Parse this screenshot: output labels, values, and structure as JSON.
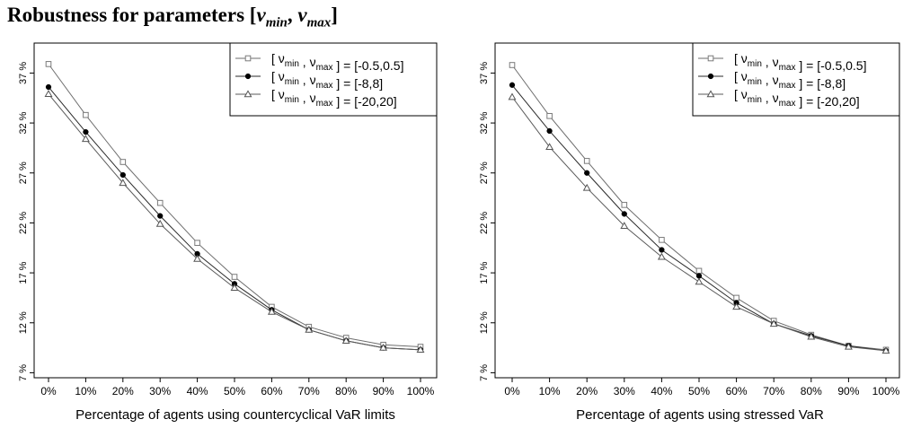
{
  "page": {
    "title_prefix": "Robustness for parameters [",
    "title_v1": "v",
    "title_sub1": "min",
    "title_sep": ", ",
    "title_v2": "v",
    "title_sub2": "max",
    "title_suffix": "]"
  },
  "chart_data": [
    {
      "type": "line",
      "xlabel": "Percentage of agents using countercyclical VaR limits",
      "ylabel": "",
      "categories": [
        "0%",
        "10%",
        "20%",
        "30%",
        "40%",
        "50%",
        "60%",
        "70%",
        "80%",
        "90%",
        "100%"
      ],
      "yticks": [
        "7 %",
        "12 %",
        "17 %",
        "22 %",
        "27 %",
        "32 %",
        "37 %"
      ],
      "ytick_values": [
        7,
        12,
        17,
        22,
        27,
        32,
        37
      ],
      "ylim": [
        6.5,
        40
      ],
      "grid": false,
      "legend_position": "top-right",
      "series": [
        {
          "name_range": "[-0.5,0.5]",
          "marker": "square",
          "values": [
            37.9,
            32.8,
            28.1,
            24.0,
            20.0,
            16.6,
            13.6,
            11.6,
            10.5,
            9.8,
            9.6
          ]
        },
        {
          "name_range": "[-8,8]",
          "marker": "dot",
          "values": [
            35.6,
            31.1,
            26.8,
            22.7,
            18.9,
            15.9,
            13.3,
            11.3,
            10.2,
            9.5,
            9.3
          ]
        },
        {
          "name_range": "[-20,20]",
          "marker": "triangle",
          "values": [
            34.9,
            30.4,
            26.0,
            21.9,
            18.4,
            15.5,
            13.1,
            11.3,
            10.2,
            9.5,
            9.3
          ]
        }
      ]
    },
    {
      "type": "line",
      "xlabel": "Percentage of agents using stressed VaR",
      "ylabel": "",
      "categories": [
        "0%",
        "10%",
        "20%",
        "30%",
        "40%",
        "50%",
        "60%",
        "70%",
        "80%",
        "90%",
        "100%"
      ],
      "yticks": [
        "7 %",
        "12 %",
        "17 %",
        "22 %",
        "27 %",
        "32 %",
        "37 %"
      ],
      "ytick_values": [
        7,
        12,
        17,
        22,
        27,
        32,
        37
      ],
      "ylim": [
        6.5,
        40
      ],
      "grid": false,
      "legend_position": "top-right",
      "series": [
        {
          "name_range": "[-0.5,0.5]",
          "marker": "square",
          "values": [
            37.8,
            32.7,
            28.2,
            23.8,
            20.3,
            17.2,
            14.5,
            12.2,
            10.8,
            9.7,
            9.3
          ]
        },
        {
          "name_range": "[-8,8]",
          "marker": "dot",
          "values": [
            35.8,
            31.2,
            27.0,
            22.9,
            19.3,
            16.7,
            14.0,
            11.9,
            10.7,
            9.7,
            9.2
          ]
        },
        {
          "name_range": "[-20,20]",
          "marker": "triangle",
          "values": [
            34.6,
            29.6,
            25.5,
            21.7,
            18.6,
            16.1,
            13.6,
            11.9,
            10.6,
            9.6,
            9.2
          ]
        }
      ]
    }
  ],
  "legend": {
    "bracket_open": "[",
    "symbol_v": "ν",
    "sub_min": "min",
    "comma": " , ",
    "sub_max": "max",
    "close_eq": " ] = "
  }
}
